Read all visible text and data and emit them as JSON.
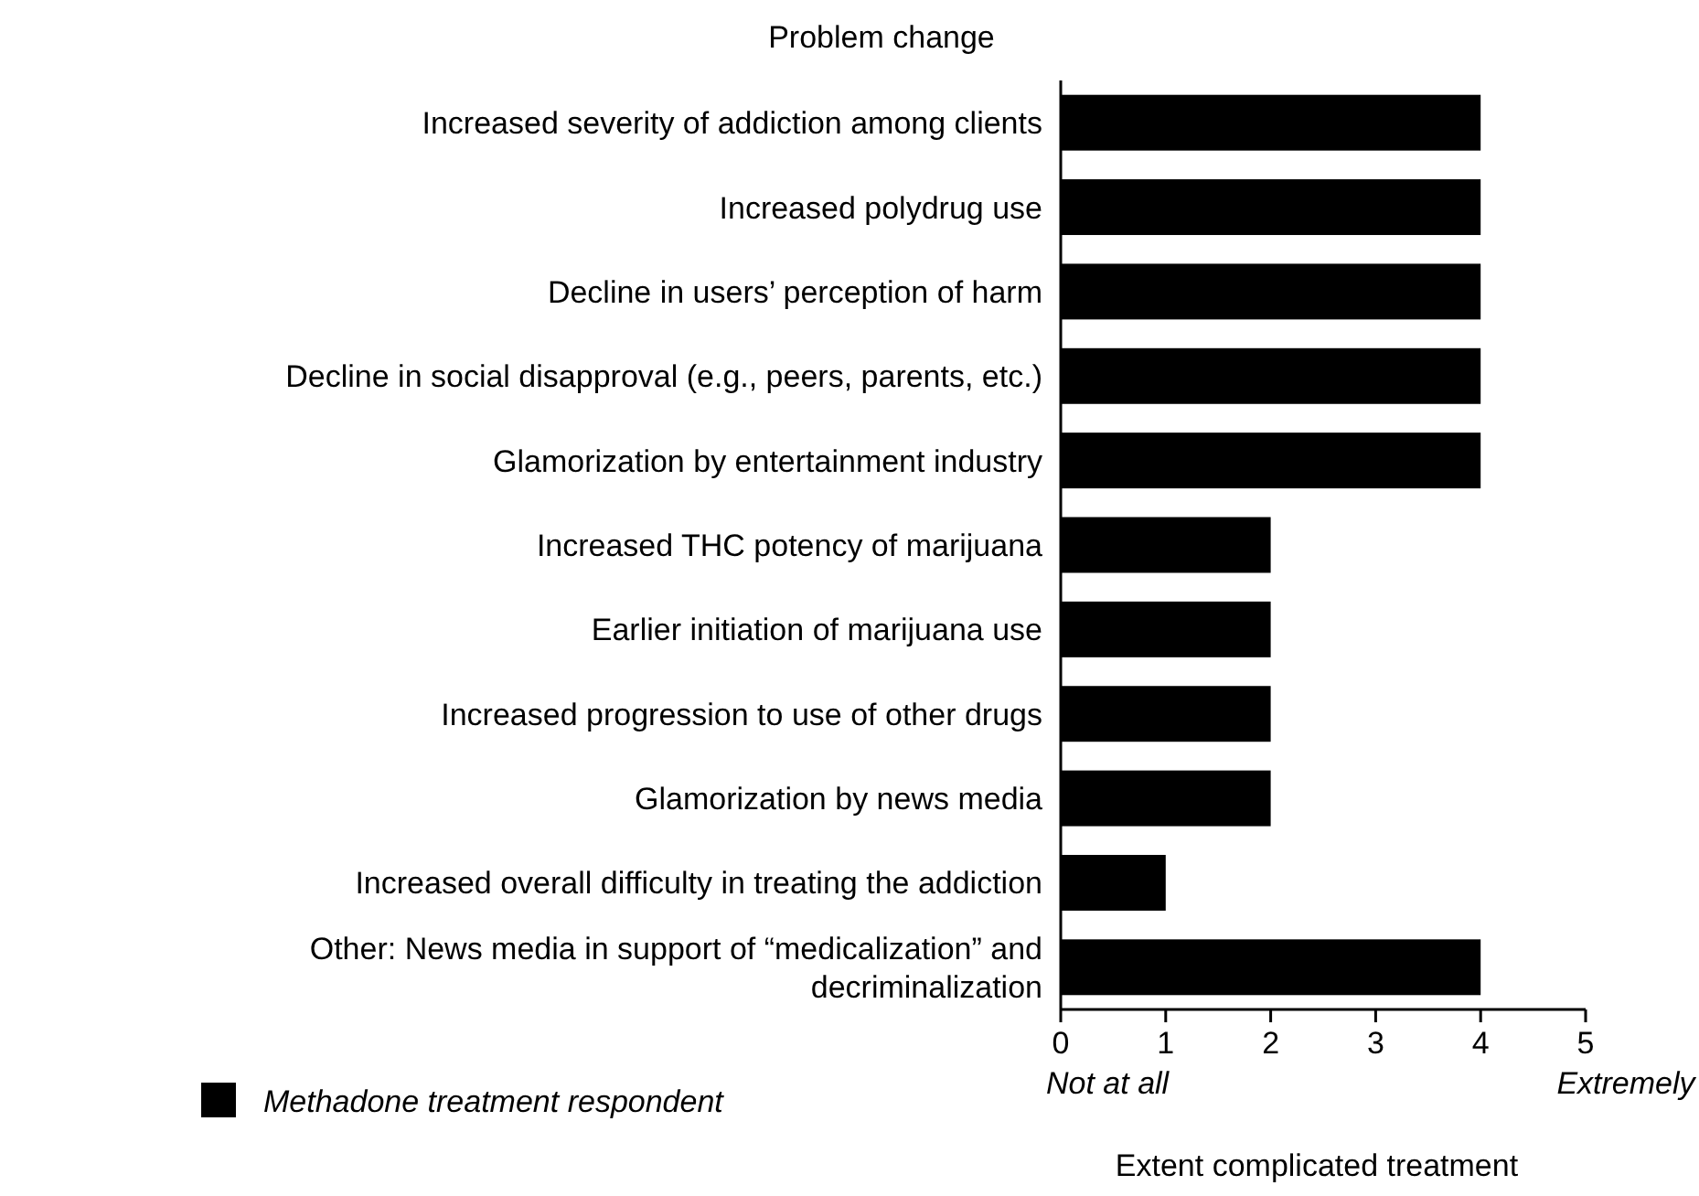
{
  "chart_data": {
    "type": "bar",
    "orientation": "horizontal",
    "ylabel": "Problem change",
    "xlabel": "Extent complicated treatment",
    "categories": [
      "Increased severity of addiction among clients",
      "Increased polydrug use",
      "Decline in users’ perception of harm",
      "Decline in social disapproval (e.g., peers, parents, etc.)",
      "Glamorization by entertainment industry",
      "Increased THC potency of marijuana",
      "Earlier initiation of marijuana use",
      "Increased progression to use of other drugs",
      "Glamorization by news media",
      "Increased overall difficulty in treating the addiction",
      "Other: News media in support of “medicalization” and decriminalization"
    ],
    "series": [
      {
        "name": "Methadone treatment respondent",
        "color": "#000000",
        "values": [
          4,
          4,
          4,
          4,
          4,
          2,
          2,
          2,
          2,
          1,
          4
        ]
      }
    ],
    "xlim": [
      0,
      5
    ],
    "xticks": [
      0,
      1,
      2,
      3,
      4,
      5
    ],
    "annotations": [
      "Not at all",
      "Extremely"
    ],
    "legend": "bottom left",
    "grid": false
  }
}
